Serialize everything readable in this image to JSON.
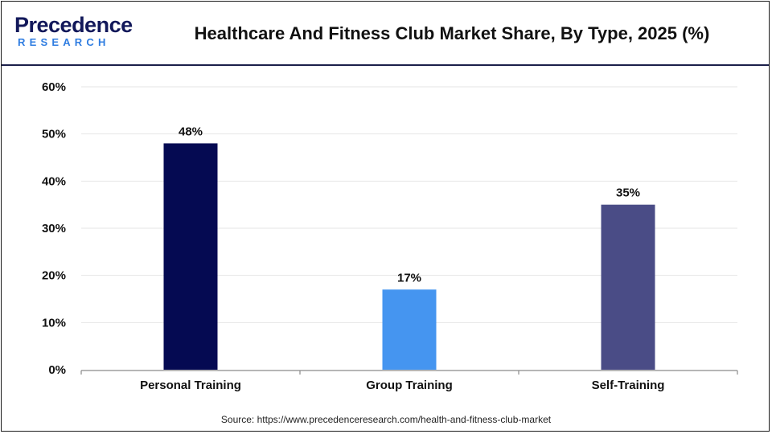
{
  "header": {
    "logo_word": "Precedence",
    "logo_sub": "RESEARCH",
    "title": "Healthcare And Fitness Club Market Share, By Type, 2025 (%)"
  },
  "chart_data": {
    "type": "bar",
    "title": "Healthcare And Fitness Club Market Share, By Type, 2025 (%)",
    "categories": [
      "Personal Training",
      "Group Training",
      "Self-Training"
    ],
    "values": [
      48,
      17,
      35
    ],
    "data_labels": [
      "48%",
      "17%",
      "35%"
    ],
    "bar_colors": [
      "#050a52",
      "#4595f0",
      "#4a4c86"
    ],
    "ylim": [
      0,
      60
    ],
    "yticks": [
      0,
      10,
      20,
      30,
      40,
      50,
      60
    ],
    "ytick_labels": [
      "0%",
      "10%",
      "20%",
      "30%",
      "40%",
      "50%",
      "60%"
    ],
    "xlabel": "",
    "ylabel": "",
    "grid": true,
    "legend": "none"
  },
  "footer": {
    "source": "Source: https://www.precedenceresearch.com/health-and-fitness-club-market"
  }
}
